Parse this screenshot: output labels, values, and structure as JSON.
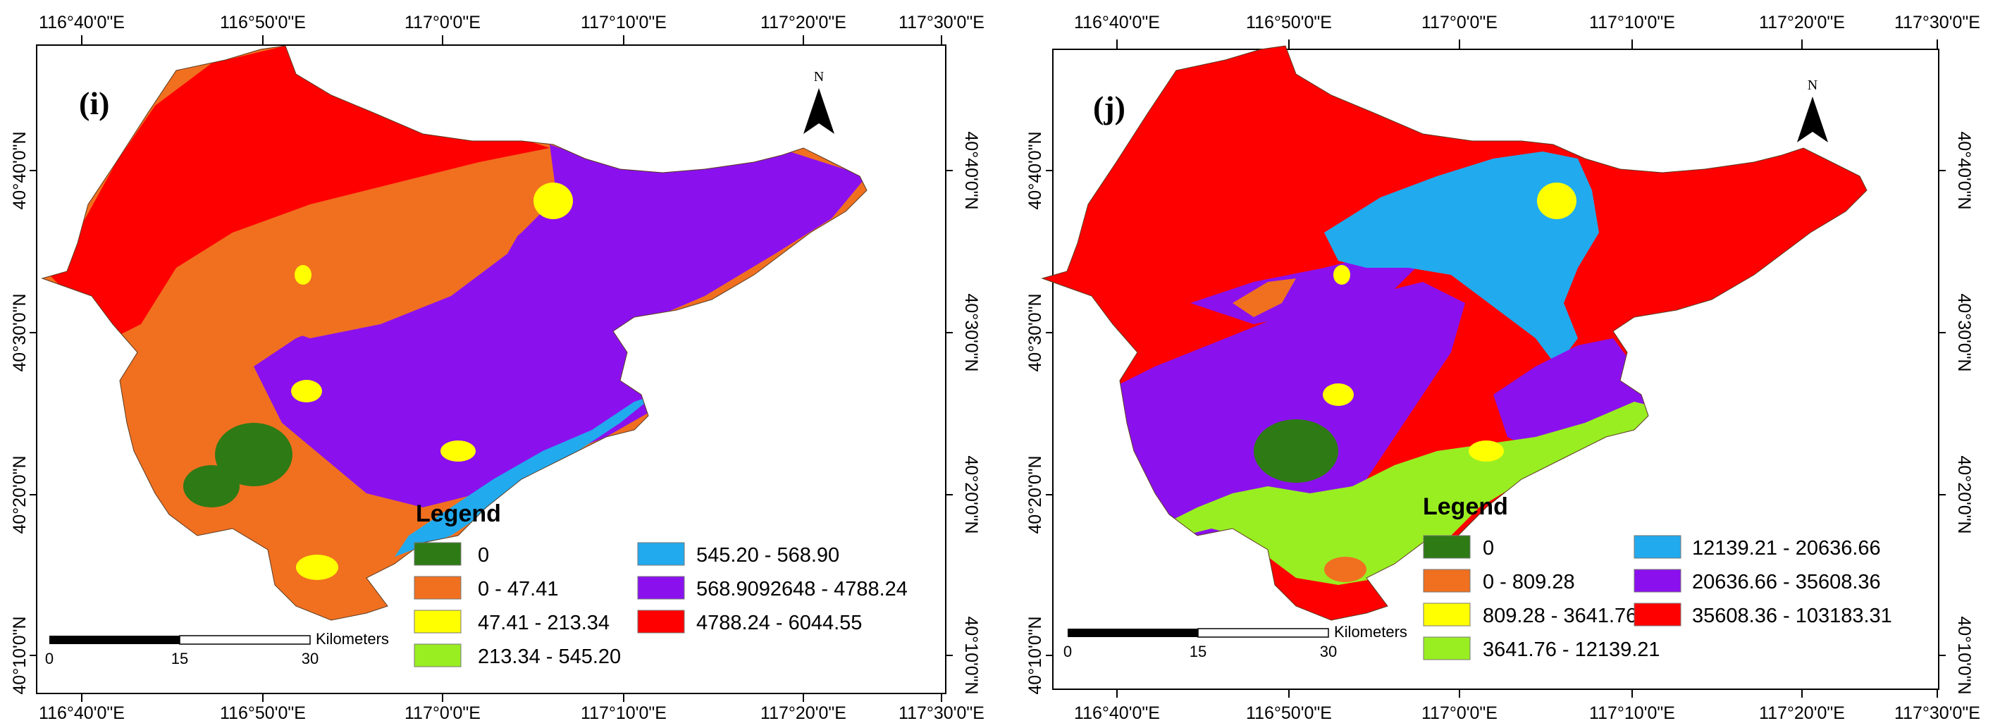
{
  "axes": {
    "x_ticks": [
      "116°40'0\"E",
      "116°50'0\"E",
      "117°0'0\"E",
      "117°10'0\"E",
      "117°20'0\"E",
      "117°30'0\"E"
    ],
    "y_ticks": [
      "40°40'0\"N",
      "40°30'0\"N",
      "40°20'0\"N",
      "40°10'0\"N"
    ]
  },
  "legend_title": "Legend",
  "north_label": "N",
  "scale_bar": {
    "unit": "Kilometers",
    "labels": [
      "0",
      "15",
      "30"
    ]
  },
  "panels": [
    {
      "label": "(i)",
      "classes": [
        {
          "label": "0",
          "color": "#2e7a15"
        },
        {
          "label": "0 - 47.41",
          "color": "#f07020"
        },
        {
          "label": "47.41 - 213.34",
          "color": "#ffff00"
        },
        {
          "label": "213.34 - 545.20",
          "color": "#99ee22"
        },
        {
          "label": "545.20 - 568.90",
          "color": "#22aaee"
        },
        {
          "label": "568.9092648 - 4788.24",
          "color": "#8a11ee"
        },
        {
          "label": "4788.24 - 6044.55",
          "color": "#ff0000"
        }
      ]
    },
    {
      "label": "(j)",
      "classes": [
        {
          "label": "0",
          "color": "#2e7a15"
        },
        {
          "label": "0 - 809.28",
          "color": "#f07020"
        },
        {
          "label": "809.28 - 3641.76",
          "color": "#ffff00"
        },
        {
          "label": "3641.76 - 12139.21",
          "color": "#99ee22"
        },
        {
          "label": "12139.21 - 20636.66",
          "color": "#22aaee"
        },
        {
          "label": "20636.66 - 35608.36",
          "color": "#8a11ee"
        },
        {
          "label": "35608.36 - 103183.31",
          "color": "#ff0000"
        }
      ]
    }
  ]
}
